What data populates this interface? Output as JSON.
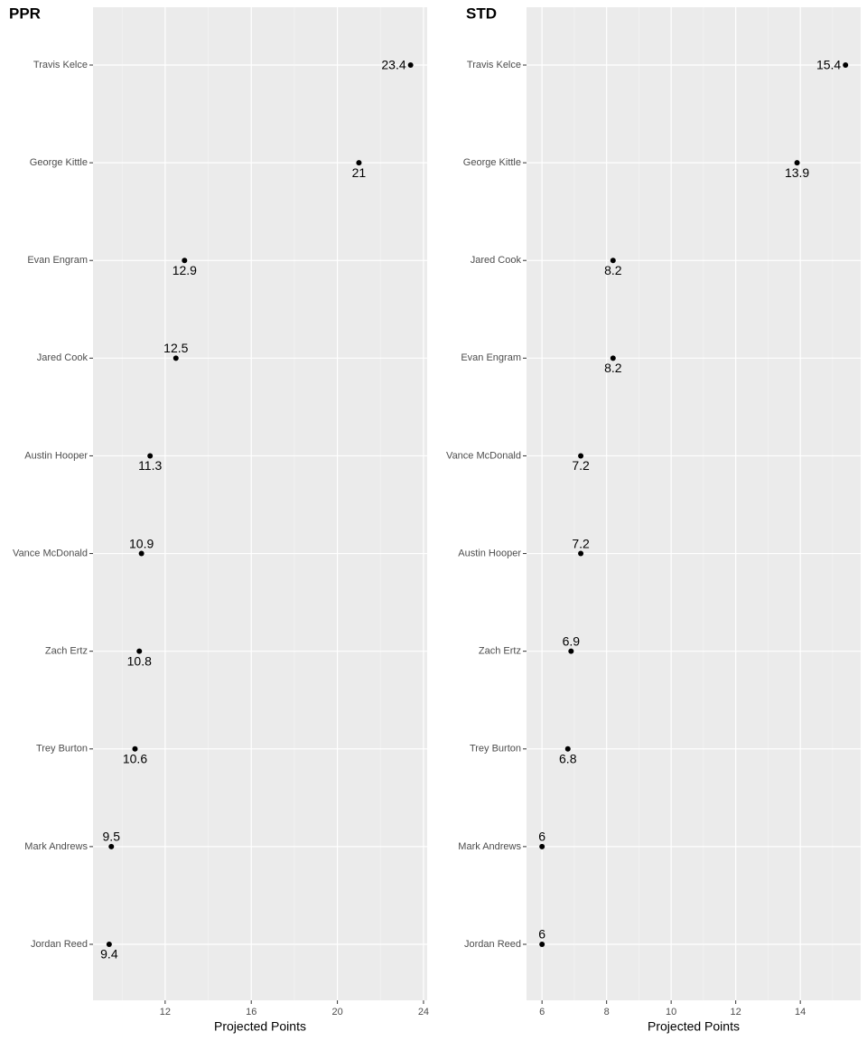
{
  "chart_data": [
    {
      "type": "dot",
      "title": "PPR",
      "x_label": "Projected Points",
      "categories": [
        "Travis Kelce",
        "George Kittle",
        "Evan Engram",
        "Jared Cook",
        "Austin Hooper",
        "Vance McDonald",
        "Zach Ertz",
        "Trey Burton",
        "Mark Andrews",
        "Jordan Reed"
      ],
      "values": [
        23.4,
        21,
        12.9,
        12.5,
        11.3,
        10.9,
        10.8,
        10.6,
        9.5,
        9.4
      ],
      "color": "#000000",
      "xlim": [
        8.65,
        24.17
      ],
      "xticks": [
        12,
        16,
        20,
        24
      ],
      "grid": true
    },
    {
      "type": "dot",
      "title": "STD",
      "x_label": "Projected Points",
      "categories": [
        "Travis Kelce",
        "George Kittle",
        "Jared Cook",
        "Evan Engram",
        "Vance McDonald",
        "Austin Hooper",
        "Zach Ertz",
        "Trey Burton",
        "Mark Andrews",
        "Jordan Reed"
      ],
      "values": [
        15.4,
        13.9,
        8.2,
        8.2,
        7.2,
        7.2,
        6.9,
        6.8,
        6,
        6
      ],
      "color": "#000000",
      "xlim": [
        5.52,
        15.87
      ],
      "xticks": [
        6,
        8,
        10,
        12,
        14
      ],
      "grid": true
    }
  ]
}
